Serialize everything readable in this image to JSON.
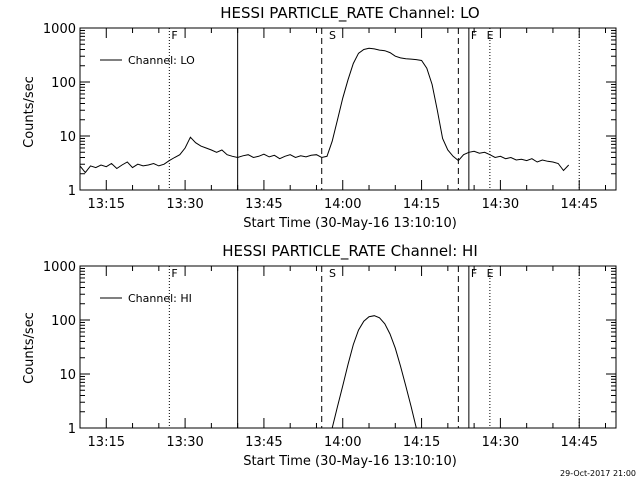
{
  "chart_data": [
    {
      "type": "line",
      "title": "HESSI PARTICLE_RATE Channel: LO",
      "xlabel": "Start Time (30-May-16 13:10:10)",
      "ylabel": "Counts/sec",
      "xlim": [
        "13:10",
        "14:52"
      ],
      "ylim": [
        1,
        1000
      ],
      "yscale": "log",
      "grid": false,
      "legend": "top-left",
      "x_ticks": [
        "13:15",
        "13:30",
        "13:45",
        "14:00",
        "14:15",
        "14:30",
        "14:45"
      ],
      "y_ticks": [
        "1",
        "10",
        "100",
        "1000"
      ],
      "series": [
        {
          "name": "Channel: LO",
          "x": [
            "13:10",
            "13:11",
            "13:12",
            "13:13",
            "13:14",
            "13:15",
            "13:16",
            "13:17",
            "13:18",
            "13:19",
            "13:20",
            "13:21",
            "13:22",
            "13:23",
            "13:24",
            "13:25",
            "13:26",
            "13:27",
            "13:28",
            "13:29",
            "13:30",
            "13:31",
            "13:32",
            "13:33",
            "13:34",
            "13:35",
            "13:36",
            "13:37",
            "13:38",
            "13:39",
            "13:40",
            "13:41",
            "13:42",
            "13:43",
            "13:44",
            "13:45",
            "13:46",
            "13:47",
            "13:48",
            "13:49",
            "13:50",
            "13:51",
            "13:52",
            "13:53",
            "13:54",
            "13:55",
            "13:56",
            "13:57",
            "13:58",
            "13:59",
            "14:00",
            "14:01",
            "14:02",
            "14:03",
            "14:04",
            "14:05",
            "14:06",
            "14:07",
            "14:08",
            "14:09",
            "14:10",
            "14:11",
            "14:12",
            "14:13",
            "14:14",
            "14:15",
            "14:16",
            "14:17",
            "14:18",
            "14:19",
            "14:20",
            "14:21",
            "14:22",
            "14:23",
            "14:24",
            "14:25",
            "14:26",
            "14:27",
            "14:28",
            "14:29",
            "14:30",
            "14:31",
            "14:32",
            "14:33",
            "14:34",
            "14:35",
            "14:36",
            "14:37",
            "14:38",
            "14:39",
            "14:40",
            "14:41",
            "14:42",
            "14:43"
          ],
          "values": [
            2.8,
            2.1,
            2.8,
            2.6,
            2.9,
            2.7,
            3.1,
            2.5,
            2.9,
            3.3,
            2.6,
            3.0,
            2.8,
            2.9,
            3.1,
            2.8,
            3.0,
            3.5,
            4.0,
            4.5,
            6.0,
            9.5,
            7.5,
            6.5,
            6.0,
            5.5,
            5.0,
            5.5,
            4.5,
            4.2,
            4.0,
            4.3,
            4.5,
            4.0,
            4.2,
            4.6,
            4.1,
            4.4,
            3.8,
            4.2,
            4.5,
            4.0,
            4.3,
            4.1,
            4.4,
            4.5,
            4.0,
            4.2,
            8.0,
            20,
            50,
            110,
            220,
            340,
            400,
            420,
            410,
            390,
            380,
            350,
            300,
            280,
            270,
            265,
            260,
            250,
            180,
            90,
            30,
            9.0,
            5.5,
            4.2,
            3.5,
            4.5,
            5.0,
            5.2,
            4.8,
            5.0,
            4.5,
            4.0,
            4.2,
            3.8,
            4.0,
            3.6,
            3.7,
            3.5,
            3.8,
            3.3,
            3.6,
            3.4,
            3.3,
            3.1,
            2.3,
            2.9
          ]
        }
      ],
      "annotations": [
        {
          "text": "F",
          "x": "13:27"
        },
        {
          "text": "S",
          "x": "13:57"
        },
        {
          "text": "F",
          "x": "14:24"
        },
        {
          "text": "E",
          "x": "14:27"
        }
      ],
      "legend_label": "Channel: LO"
    },
    {
      "type": "line",
      "title": "HESSI PARTICLE_RATE Channel: HI",
      "xlabel": "Start Time (30-May-16 13:10:10)",
      "ylabel": "Counts/sec",
      "xlim": [
        "13:10",
        "14:52"
      ],
      "ylim": [
        1,
        1000
      ],
      "yscale": "log",
      "grid": false,
      "legend": "top-left",
      "x_ticks": [
        "13:15",
        "13:30",
        "13:45",
        "14:00",
        "14:15",
        "14:30",
        "14:45"
      ],
      "y_ticks": [
        "1",
        "10",
        "100",
        "1000"
      ],
      "series": [
        {
          "name": "Channel: HI",
          "x": [
            "13:58",
            "13:59",
            "14:00",
            "14:01",
            "14:02",
            "14:03",
            "14:04",
            "14:05",
            "14:06",
            "14:07",
            "14:08",
            "14:09",
            "14:10",
            "14:11",
            "14:12",
            "14:13",
            "14:14"
          ],
          "values": [
            1.0,
            2.5,
            6.0,
            15,
            35,
            65,
            95,
            115,
            120,
            110,
            85,
            55,
            30,
            14,
            6.0,
            2.5,
            1.0
          ]
        }
      ],
      "annotations": [
        {
          "text": "F",
          "x": "13:27"
        },
        {
          "text": "S",
          "x": "13:57"
        },
        {
          "text": "F",
          "x": "14:24"
        },
        {
          "text": "E",
          "x": "14:27"
        }
      ],
      "legend_label": "Channel: HI"
    }
  ],
  "footer": {
    "date": "29-Oct-2017 21:00"
  },
  "vertical_lines": [
    {
      "time": "13:27",
      "style": "dotted"
    },
    {
      "time": "13:40",
      "style": "solid"
    },
    {
      "time": "13:56",
      "style": "dashed"
    },
    {
      "time": "14:22",
      "style": "dashed"
    },
    {
      "time": "14:24",
      "style": "solid"
    },
    {
      "time": "14:28",
      "style": "dotted"
    },
    {
      "time": "14:45",
      "style": "dotted"
    }
  ]
}
